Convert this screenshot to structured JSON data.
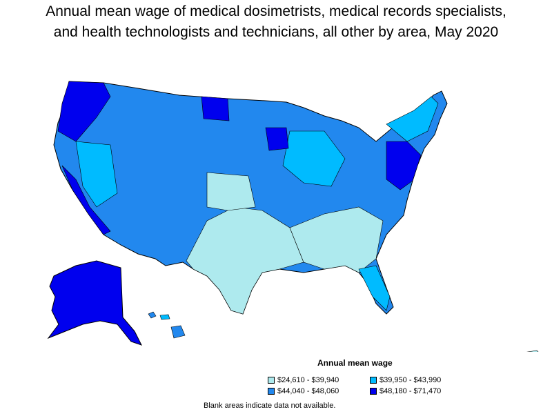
{
  "title_line1": "Annual mean wage of medical dosimetrists, medical records specialists,",
  "title_line2": "and health technologists and technicians, all other by area, May 2020",
  "legend": {
    "title": "Annual mean wage",
    "items": [
      {
        "label": "$24,610 - $39,940",
        "color": "#aeeaee"
      },
      {
        "label": "$39,950 - $43,990",
        "color": "#00bbff"
      },
      {
        "label": "$44,040 - $48,060",
        "color": "#2288ee"
      },
      {
        "label": "$48,180 - $71,470",
        "color": "#0000ee"
      }
    ]
  },
  "note": "Blank areas indicate data not available."
}
